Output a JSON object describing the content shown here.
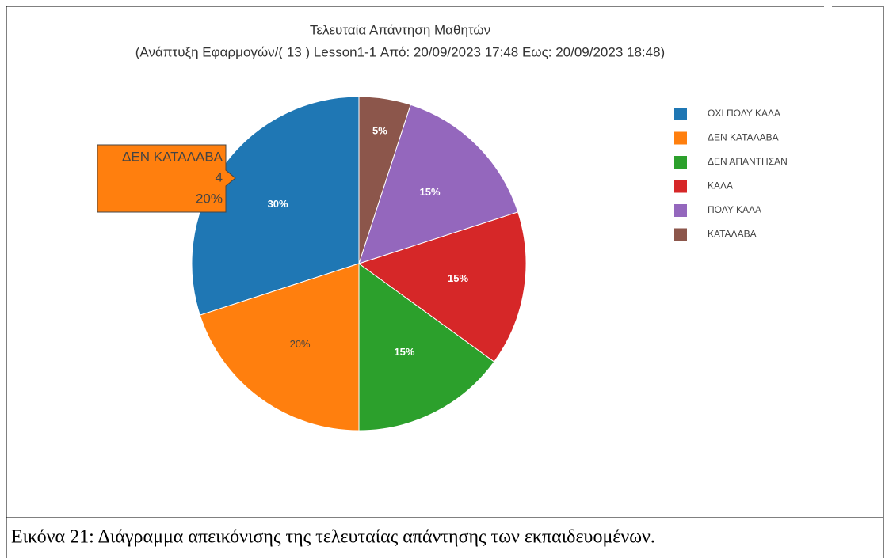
{
  "chart_data": {
    "type": "pie",
    "title": "Τελευταία Απάντηση Μαθητών",
    "subtitle": "(Ανάπτυξη Εφαρμογών/( 13 ) Lesson1-1 Από: 20/09/2023 17:48 Εως: 20/09/2023 18:48)",
    "categories": [
      "ΟΧΙ ΠΟΛΥ ΚΑΛΑ",
      "ΔΕΝ ΚΑΤΑΛΑΒΑ",
      "ΔΕΝ ΑΠΑΝΤΗΣΑΝ",
      "ΚΑΛΑ",
      "ΠΟΛΥ ΚΑΛΑ",
      "ΚΑΤΑΛΑΒΑ"
    ],
    "values": [
      30,
      20,
      15,
      15,
      15,
      5
    ],
    "value_labels": [
      "30%",
      "20%",
      "15%",
      "15%",
      "15%",
      "5%"
    ],
    "colors": [
      "#1f77b4",
      "#ff7f0e",
      "#2ca02c",
      "#d62728",
      "#9467bd",
      "#8c564b"
    ],
    "direction": "counterclockwise",
    "legend": "right",
    "hover": {
      "label": "ΔΕΝ ΚΑΤΑΛΑΒΑ",
      "count": 4,
      "value_label": "20%"
    }
  },
  "caption": "Εικόνα 21: Διάγραμμα απεικόνισης της τελευταίας απάντησης των εκπαιδευομένων."
}
